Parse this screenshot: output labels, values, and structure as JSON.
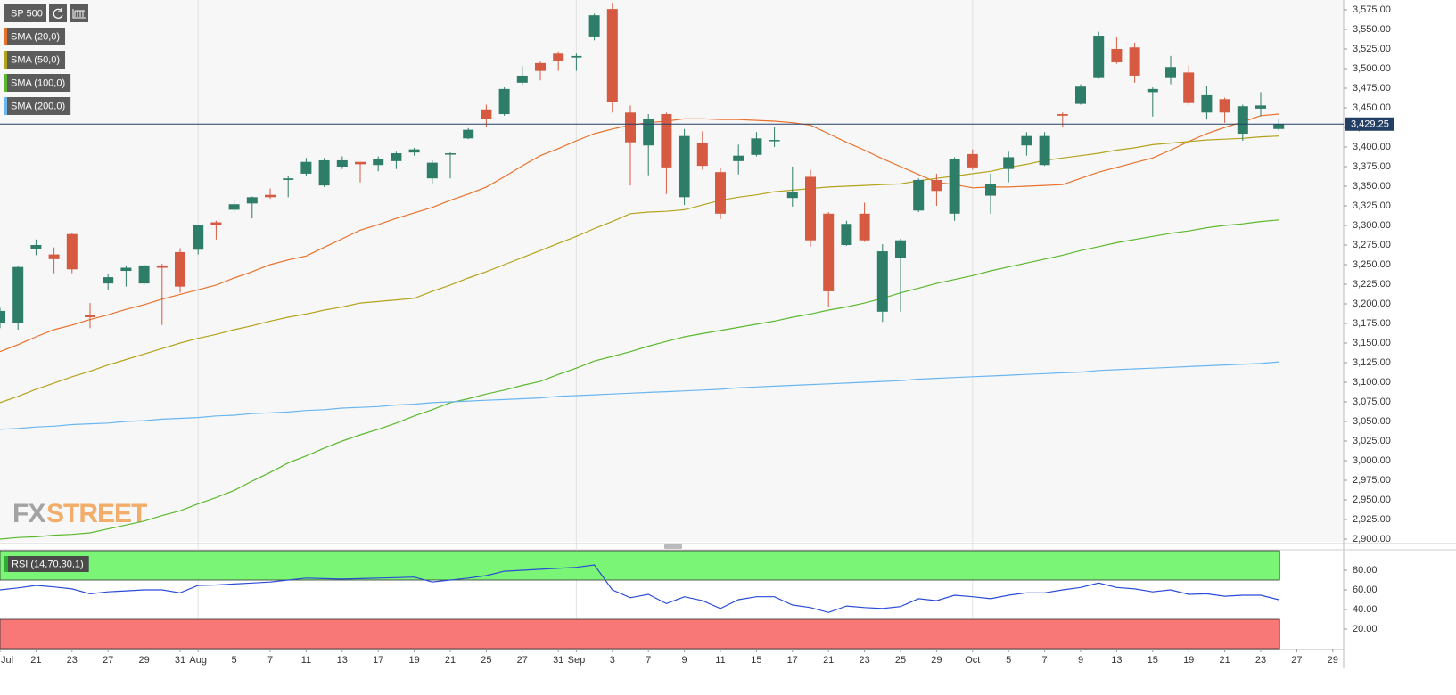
{
  "chart_data": [
    {
      "type": "candlestick",
      "title": "SP 500",
      "categories": [
        "Jul",
        null,
        "21",
        null,
        "23",
        null,
        "27",
        null,
        "29",
        null,
        "31",
        "Aug",
        null,
        "5",
        null,
        "7",
        null,
        "11",
        null,
        "13",
        null,
        "17",
        null,
        "19",
        null,
        "21",
        null,
        "25",
        null,
        "27",
        null,
        "31",
        "Sep",
        null,
        "3",
        null,
        "7",
        null,
        "9",
        null,
        "11",
        null,
        "15",
        null,
        "17",
        null,
        "21",
        null,
        "23",
        null,
        "25",
        null,
        "29",
        null,
        "Oct",
        null,
        "5",
        null,
        "7",
        null,
        "9",
        null,
        "13",
        null,
        "15",
        null,
        "19",
        null,
        "21",
        null,
        "23",
        null,
        "27",
        null,
        "29"
      ],
      "open": [
        3176,
        3175,
        3270,
        3263,
        3289,
        3186,
        3226,
        3242,
        3226,
        3249,
        3266,
        3269,
        3304,
        3320,
        3328,
        3339,
        3358,
        3366,
        3351,
        3375,
        3381,
        3377,
        3382,
        3393,
        3360,
        3391,
        3411,
        3448,
        3442,
        3482,
        3507,
        3519,
        3514,
        3541,
        3576,
        3444,
        3402,
        3442,
        3336,
        3405,
        3368,
        3382,
        3390,
        3409,
        3335,
        3362,
        3315,
        3275,
        3315,
        3190,
        3258,
        3319,
        3358,
        3315,
        3391,
        3338,
        3372,
        3402,
        3377,
        3442,
        3455,
        3489,
        3525,
        3527,
        3470,
        3489,
        3495,
        3444,
        3461,
        3417,
        3449,
        3423,
        null,
        null,
        null
      ],
      "high": [
        3195,
        3249,
        3282,
        3272,
        3290,
        3201,
        3238,
        3249,
        3251,
        3251,
        3271,
        3301,
        3306,
        3332,
        3337,
        3347,
        3363,
        3386,
        3386,
        3388,
        3381,
        3388,
        3394,
        3399,
        3383,
        3393,
        3424,
        3454,
        3476,
        3503,
        3509,
        3522,
        3519,
        3570,
        3584,
        3453,
        3442,
        3444,
        3423,
        3420,
        3374,
        3403,
        3419,
        3425,
        3375,
        3371,
        3317,
        3306,
        3329,
        3276,
        3283,
        3360,
        3366,
        3387,
        3397,
        3366,
        3394,
        3419,
        3419,
        3444,
        3480,
        3547,
        3541,
        3533,
        3476,
        3516,
        3504,
        3478,
        3463,
        3454,
        3470,
        3436,
        null,
        null,
        null
      ],
      "low": [
        3169,
        3167,
        3262,
        3239,
        3239,
        3169,
        3218,
        3222,
        3224,
        3173,
        3214,
        3263,
        3282,
        3317,
        3309,
        3334,
        3336,
        3363,
        3349,
        3372,
        3355,
        3369,
        3372,
        3389,
        3353,
        3360,
        3410,
        3425,
        3440,
        3479,
        3485,
        3497,
        3497,
        3536,
        3444,
        3351,
        3364,
        3340,
        3326,
        3371,
        3308,
        3365,
        3388,
        3400,
        3324,
        3273,
        3196,
        3274,
        3279,
        3177,
        3190,
        3317,
        3325,
        3306,
        3371,
        3315,
        3355,
        3389,
        3376,
        3425,
        3454,
        3487,
        3506,
        3482,
        3439,
        3480,
        3454,
        3435,
        3431,
        3408,
        3439,
        3421,
        null,
        null,
        null
      ],
      "close": [
        3191,
        3247,
        3275,
        3257,
        3244,
        3183,
        3234,
        3246,
        3249,
        3246,
        3222,
        3300,
        3301,
        3327,
        3336,
        3336,
        3360,
        3381,
        3383,
        3383,
        3378,
        3385,
        3392,
        3397,
        3380,
        3392,
        3422,
        3436,
        3474,
        3491,
        3497,
        3510,
        3516,
        3568,
        3457,
        3406,
        3436,
        3374,
        3414,
        3376,
        3315,
        3389,
        3411,
        3409,
        3343,
        3281,
        3216,
        3302,
        3281,
        3267,
        3281,
        3358,
        3344,
        3385,
        3374,
        3353,
        3387,
        3414,
        3414,
        3440,
        3477,
        3542,
        3508,
        3491,
        3474,
        3502,
        3456,
        3466,
        3444,
        3452,
        3453,
        3429.25,
        null,
        null,
        null
      ],
      "up_color": "#2e7d68",
      "down_color": "#d65a42",
      "ylim": [
        2896.6,
        3587.5
      ],
      "yticks": [
        {
          "value": 2900,
          "label": "2,900.00"
        },
        {
          "value": 2925,
          "label": "2,925.00"
        },
        {
          "value": 2950,
          "label": "2,950.00"
        },
        {
          "value": 2975,
          "label": "2,975.00"
        },
        {
          "value": 3000,
          "label": "3,000.00"
        },
        {
          "value": 3025,
          "label": "3,025.00"
        },
        {
          "value": 3050,
          "label": "3,050.00"
        },
        {
          "value": 3075,
          "label": "3,075.00"
        },
        {
          "value": 3100,
          "label": "3,100.00"
        },
        {
          "value": 3125,
          "label": "3,125.00"
        },
        {
          "value": 3150,
          "label": "3,150.00"
        },
        {
          "value": 3175,
          "label": "3,175.00"
        },
        {
          "value": 3200,
          "label": "3,200.00"
        },
        {
          "value": 3225,
          "label": "3,225.00"
        },
        {
          "value": 3250,
          "label": "3,250.00"
        },
        {
          "value": 3275,
          "label": "3,275.00"
        },
        {
          "value": 3300,
          "label": "3,300.00"
        },
        {
          "value": 3325,
          "label": "3,325.00"
        },
        {
          "value": 3350,
          "label": "3,350.00"
        },
        {
          "value": 3375,
          "label": "3,375.00"
        },
        {
          "value": 3400,
          "label": "3,400.00"
        },
        {
          "value": 3425,
          "label": "3,425.00"
        },
        {
          "value": 3450,
          "label": "3,450.00"
        },
        {
          "value": 3475,
          "label": "3,475.00"
        },
        {
          "value": 3500,
          "label": "3,500.00"
        },
        {
          "value": 3525,
          "label": "3,525.00"
        },
        {
          "value": 3550,
          "label": "3,550.00"
        },
        {
          "value": 3575,
          "label": "3,575.00"
        }
      ],
      "overlays": [
        {
          "name": "SMA (20,0)",
          "color": "#e8722c",
          "values": [
            3139,
            3148,
            3158,
            3167,
            3173,
            3180,
            3186,
            3193,
            3199,
            3206,
            3212,
            3218,
            3224,
            3233,
            3241,
            3250,
            3256,
            3261,
            3272,
            3283,
            3294,
            3301,
            3309,
            3316,
            3323,
            3332,
            3340,
            3349,
            3362,
            3376,
            3389,
            3398,
            3408,
            3417,
            3423,
            3428,
            3431,
            3433,
            3436,
            3436,
            3435,
            3435,
            3434,
            3433,
            3431,
            3428,
            3417,
            3406,
            3396,
            3385,
            3375,
            3365,
            3355,
            3352,
            3348,
            3349,
            3349,
            3350,
            3351,
            3352,
            3360,
            3368,
            3374,
            3380,
            3386,
            3396,
            3407,
            3417,
            3425,
            3432,
            3440,
            3442,
            null,
            null,
            null
          ]
        },
        {
          "name": "SMA (50,0)",
          "color": "#b3a31c",
          "values": [
            3074,
            3082,
            3091,
            3099,
            3107,
            3114,
            3122,
            3129,
            3136,
            3143,
            3150,
            3156,
            3161,
            3167,
            3172,
            3178,
            3183,
            3187,
            3192,
            3196,
            3201,
            3203,
            3205,
            3207,
            3216,
            3224,
            3233,
            3241,
            3250,
            3259,
            3268,
            3277,
            3286,
            3296,
            3305,
            3315,
            3317,
            3318,
            3320,
            3326,
            3332,
            3336,
            3339,
            3343,
            3345,
            3347,
            3349,
            3350,
            3351,
            3352,
            3353,
            3357,
            3360,
            3363,
            3366,
            3369,
            3374,
            3378,
            3383,
            3386,
            3389,
            3392,
            3396,
            3399,
            3403,
            3405,
            3407,
            3409,
            3410,
            3411,
            3413,
            3414,
            null,
            null,
            null
          ]
        },
        {
          "name": "SMA (100,0)",
          "color": "#5cb82e",
          "values": [
            2900,
            2902,
            2903,
            2905,
            2906,
            2908,
            2913,
            2918,
            2923,
            2930,
            2936,
            2945,
            2953,
            2962,
            2974,
            2985,
            2997,
            3006,
            3016,
            3025,
            3033,
            3040,
            3048,
            3057,
            3065,
            3074,
            3079,
            3085,
            3090,
            3096,
            3101,
            3110,
            3118,
            3127,
            3133,
            3139,
            3146,
            3152,
            3158,
            3162,
            3166,
            3170,
            3174,
            3178,
            3183,
            3187,
            3192,
            3196,
            3201,
            3207,
            3214,
            3220,
            3226,
            3231,
            3236,
            3242,
            3247,
            3252,
            3257,
            3262,
            3268,
            3273,
            3278,
            3282,
            3286,
            3290,
            3293,
            3297,
            3300,
            3302,
            3305,
            3307,
            null,
            null,
            null
          ]
        },
        {
          "name": "SMA (200,0)",
          "color": "#6bb6f0",
          "values": [
            3040,
            3041,
            3043,
            3044,
            3046,
            3047,
            3048,
            3050,
            3051,
            3053,
            3054,
            3055,
            3057,
            3058,
            3060,
            3061,
            3062,
            3064,
            3065,
            3067,
            3068,
            3069,
            3071,
            3072,
            3074,
            3075,
            3076,
            3077,
            3078,
            3079,
            3080,
            3082,
            3083,
            3084,
            3085,
            3086,
            3087,
            3088,
            3089,
            3090,
            3091,
            3093,
            3094,
            3095,
            3096,
            3097,
            3098,
            3099,
            3100,
            3101,
            3102,
            3104,
            3105,
            3106,
            3107,
            3108,
            3109,
            3110,
            3111,
            3112,
            3113,
            3115,
            3116,
            3117,
            3118,
            3119,
            3120,
            3121,
            3122,
            3123,
            3124,
            3126,
            null,
            null,
            null
          ]
        }
      ],
      "last_price": {
        "value": 3429.25,
        "label": "3,429.25"
      },
      "last_price_color": "#243f66",
      "watermark": {
        "first": "FX",
        "second": "STREET"
      }
    },
    {
      "type": "line",
      "name": "RSI (14,70,30,1)",
      "color": "#2a4bd7",
      "values": [
        60,
        62,
        64.5,
        63,
        61,
        56,
        58,
        59,
        60,
        60,
        57,
        64.5,
        65,
        66,
        67,
        68,
        70,
        72,
        71.5,
        71,
        71.5,
        72,
        72.5,
        73,
        68,
        70,
        72,
        74.5,
        79,
        80,
        81,
        82,
        83,
        85.5,
        60,
        52,
        55.5,
        46,
        53,
        49,
        41,
        50,
        53,
        53,
        44.5,
        42,
        37,
        43.5,
        42,
        41,
        43,
        51,
        49,
        54.5,
        53,
        51,
        54.5,
        57,
        57,
        60,
        62.5,
        67,
        62.5,
        61,
        58,
        60,
        55.5,
        56,
        53.5,
        54.5,
        54.5,
        50,
        null,
        null,
        null
      ],
      "ylim": [
        0,
        100
      ],
      "yticks": [
        {
          "value": 20,
          "label": "20.00"
        },
        {
          "value": 40,
          "label": "40.00"
        },
        {
          "value": 60,
          "label": "60.00"
        },
        {
          "value": 80,
          "label": "80.00"
        }
      ],
      "overbought": 70,
      "oversold": 30,
      "overbought_color": "#7af575",
      "oversold_color": "#f87878"
    }
  ]
}
